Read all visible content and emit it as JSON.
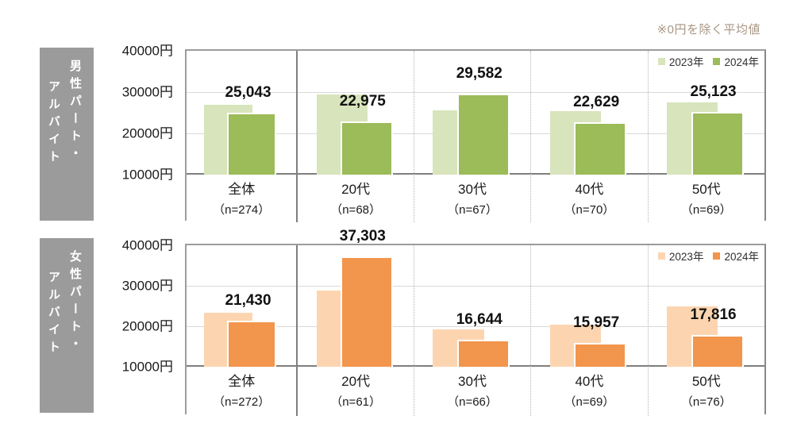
{
  "note": "※0円を除く平均値",
  "axis_ticks": [
    "40000円",
    "30000円",
    "20000円",
    "10000円"
  ],
  "chart_data": [
    {
      "type": "bar",
      "title": "男性パート・アルバイト",
      "group_label_lines": [
        "男性パート・",
        "アルバイト"
      ],
      "categories": [
        "全体",
        "20代",
        "30代",
        "40代",
        "50代"
      ],
      "n_labels": [
        "（n=274）",
        "（n=68）",
        "（n=67）",
        "（n=70）",
        "（n=69）"
      ],
      "ylim": [
        10000,
        40000
      ],
      "grid": true,
      "legend_position": "top-right",
      "series": [
        {
          "name": "2023年",
          "color": "#d8e4bc",
          "values": [
            26900,
            29500,
            25600,
            25400,
            27500
          ],
          "values_estimated_from_gridlines": true
        },
        {
          "name": "2024年",
          "color": "#9cbb59",
          "values": [
            25043,
            22975,
            29582,
            22629,
            25123
          ]
        }
      ],
      "data_labels": [
        "25,043",
        "22,975",
        "29,582",
        "22,629",
        "25,123"
      ]
    },
    {
      "type": "bar",
      "title": "女性パート・アルバイト",
      "group_label_lines": [
        "女性パート・",
        "アルバイト"
      ],
      "categories": [
        "全体",
        "20代",
        "30代",
        "40代",
        "50代"
      ],
      "n_labels": [
        "（n=272）",
        "（n=61）",
        "（n=66）",
        "（n=69）",
        "（n=76）"
      ],
      "ylim": [
        10000,
        40000
      ],
      "grid": true,
      "legend_position": "top-right",
      "series": [
        {
          "name": "2023年",
          "color": "#fcd5b0",
          "values": [
            23300,
            28900,
            19300,
            20300,
            24900
          ],
          "values_estimated_from_gridlines": true
        },
        {
          "name": "2024年",
          "color": "#f2954d",
          "values": [
            21430,
            37303,
            16644,
            15957,
            17816
          ]
        }
      ],
      "data_labels": [
        "21,430",
        "37,303",
        "16,644",
        "15,957",
        "17,816"
      ]
    }
  ]
}
